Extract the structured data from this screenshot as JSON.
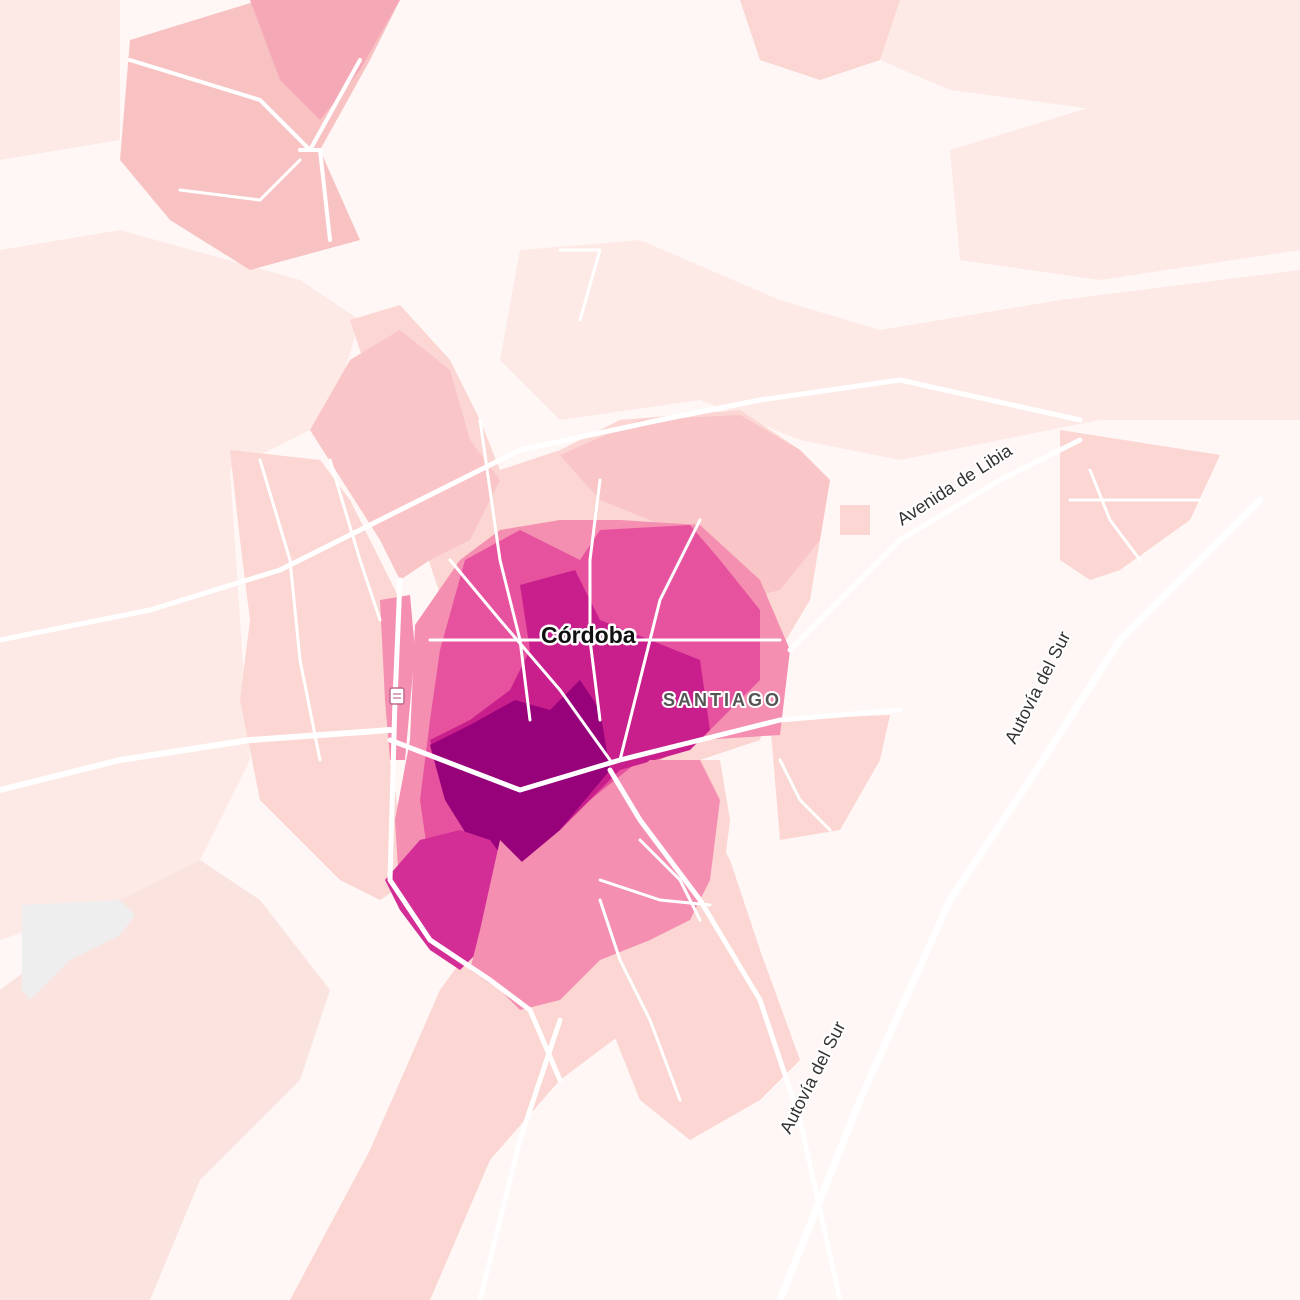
{
  "map": {
    "labels": {
      "city": "Córdoba",
      "district": "SANTIAGO",
      "road_libia": "Avenida de Libia",
      "road_sur_upper": "Autovía del Sur",
      "road_sur_lower": "Autovía del Sur"
    },
    "palette": {
      "background": "#fff7f5",
      "level_1": "#fdeae6",
      "level_2": "#fbd6d2",
      "level_3": "#f8b9be",
      "level_4": "#f48fb1",
      "level_5": "#e7529f",
      "level_6": "#c91f8d",
      "level_7": "#97017a",
      "no_data": "#eeeeee",
      "road": "#ffffff",
      "river": "#ffffff"
    },
    "icons": [
      "stadium-icon"
    ]
  }
}
